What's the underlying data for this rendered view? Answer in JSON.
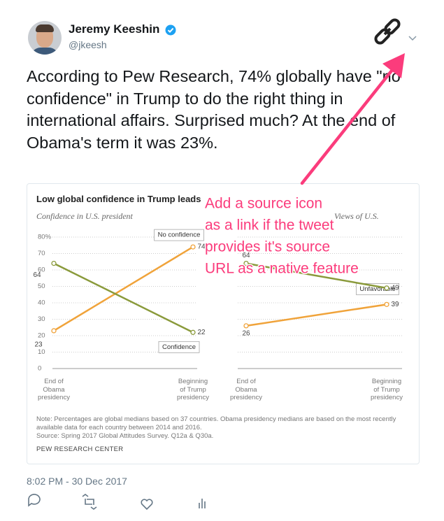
{
  "tweet": {
    "name": "Jeremy Keeshin",
    "handle": "@jkeesh",
    "text": "According to Pew Research, 74% globally have \"no confidence\" in Trump to do the right thing in international affairs. Surprised much? At the end of Obama's term it was 23%.",
    "timestamp": "8:02 PM - 30 Dec 2017"
  },
  "card": {
    "title": "Low global confidence in Trump leads",
    "note": "Note: Percentages are global medians based on 37 countries. Obama presidency medians are based on the most recently available data for each country between 2014 and 2016.",
    "source": "Source: Spring 2017 Global Attitudes Survey. Q12a & Q30a.",
    "credit": "PEW RESEARCH CENTER"
  },
  "chart_data": [
    {
      "type": "line",
      "subtitle": "Confidence in U.S. president",
      "categories": [
        "End of\nObama\npresidency",
        "Beginning\nof Trump\npresidency"
      ],
      "series": [
        {
          "name": "No confidence",
          "color": "#f0a33a",
          "values": [
            23,
            74
          ]
        },
        {
          "name": "Confidence",
          "color": "#8a9a3b",
          "values": [
            64,
            22
          ]
        }
      ],
      "ylim": [
        0,
        80
      ],
      "yticks": [
        0,
        10,
        20,
        30,
        40,
        50,
        60,
        70,
        {
          "value": 80,
          "label": "80%"
        }
      ],
      "grid": true
    },
    {
      "type": "line",
      "subtitle": "Views of U.S.",
      "categories": [
        "End of\nObama\npresidency",
        "Beginning\nof Trump\npresidency"
      ],
      "series": [
        {
          "name": "Unfavorable",
          "color": "#f0a33a",
          "values": [
            26,
            39
          ]
        },
        {
          "color": "#8a9a3b",
          "values": [
            64,
            49
          ]
        }
      ],
      "ylim": [
        0,
        80
      ],
      "grid": true
    }
  ],
  "annotation": {
    "lines": [
      "Add a source icon",
      "as a link if the tweet",
      "provides it's source",
      "URL as a native feature"
    ]
  }
}
